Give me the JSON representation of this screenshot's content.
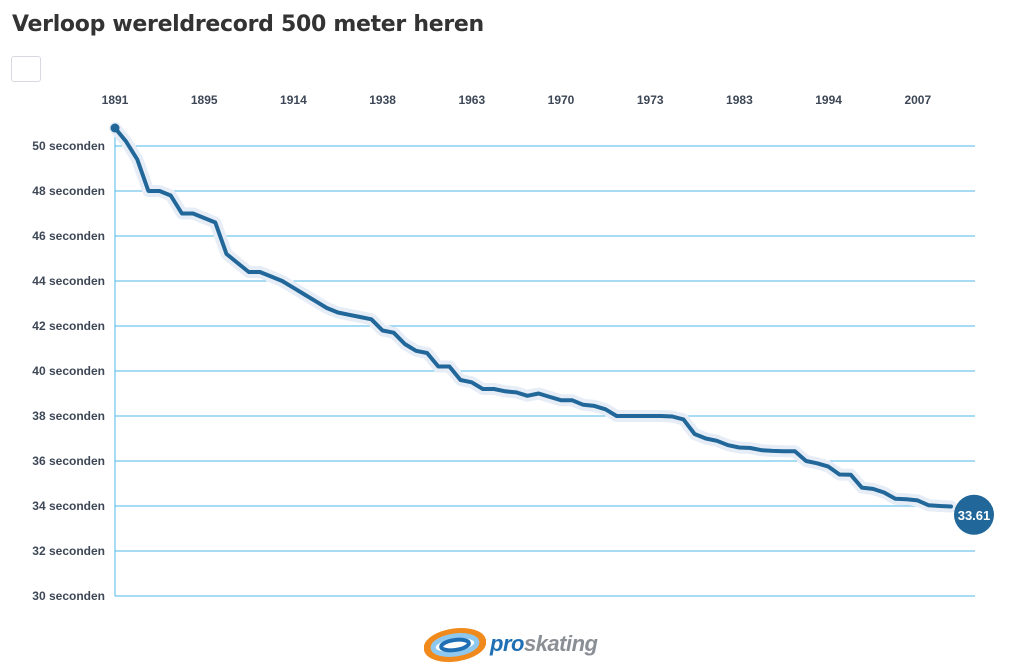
{
  "title": "Verloop wereldrecord 500 meter heren",
  "logo": {
    "part1": "pro",
    "part2": "skating"
  },
  "colors": {
    "line": "#226799",
    "grid": "#4fb8e8",
    "halo": "#e6edf6",
    "text": "#3d4756"
  },
  "chart_data": {
    "type": "line",
    "title": "Verloop wereldrecord 500 meter heren",
    "xlabel": "",
    "ylabel": "",
    "x_tick_labels": [
      "1891",
      "1895",
      "1914",
      "1938",
      "1963",
      "1970",
      "1973",
      "1983",
      "1994",
      "2007"
    ],
    "y_ticks": [
      {
        "value": 30,
        "label": "30 seconden"
      },
      {
        "value": 32,
        "label": "32 seconden"
      },
      {
        "value": 34,
        "label": "34 seconden"
      },
      {
        "value": 36,
        "label": "36 seconden"
      },
      {
        "value": 38,
        "label": "38 seconden"
      },
      {
        "value": 40,
        "label": "40 seconden"
      },
      {
        "value": 42,
        "label": "42 seconden"
      },
      {
        "value": 44,
        "label": "44 seconden"
      },
      {
        "value": 46,
        "label": "46 seconden"
      },
      {
        "value": 48,
        "label": "48 seconden"
      },
      {
        "value": 50,
        "label": "50 seconden"
      }
    ],
    "ylim": [
      30,
      50.8
    ],
    "grid": true,
    "series": [
      {
        "values": [
          50.8,
          50.2,
          49.4,
          48.0,
          48.0,
          47.8,
          47.0,
          47.0,
          46.8,
          46.6,
          45.2,
          44.8,
          44.4,
          44.4,
          44.2,
          44.0,
          43.7,
          43.4,
          43.1,
          42.8,
          42.6,
          42.5,
          42.4,
          42.3,
          41.8,
          41.7,
          41.2,
          40.9,
          40.8,
          40.2,
          40.2,
          39.6,
          39.5,
          39.2,
          39.2,
          39.1,
          39.05,
          38.9,
          39.0,
          38.85,
          38.7,
          38.7,
          38.5,
          38.45,
          38.3,
          38.0,
          38.0,
          38.0,
          38.0,
          38.0,
          37.98,
          37.85,
          37.2,
          37.0,
          36.9,
          36.7,
          36.6,
          36.58,
          36.48,
          36.45,
          36.43,
          36.43,
          36.0,
          35.9,
          35.75,
          35.4,
          35.39,
          34.82,
          34.76,
          34.6,
          34.32,
          34.3,
          34.25,
          34.03,
          34.0,
          33.98
        ],
        "end_value": 33.61,
        "end_label": "33.61"
      }
    ]
  }
}
